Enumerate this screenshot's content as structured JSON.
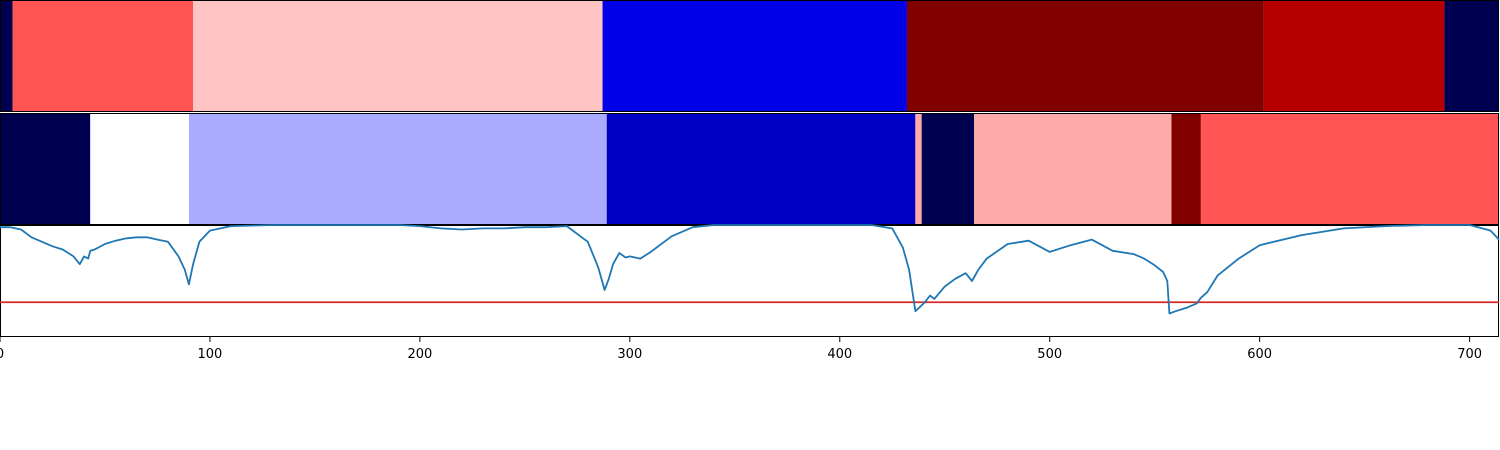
{
  "chart_data": [
    {
      "type": "heatmap",
      "row": 1,
      "xlim": [
        0,
        714
      ],
      "segments": [
        {
          "start": 0,
          "end": 6,
          "color": "#000050"
        },
        {
          "start": 6,
          "end": 92,
          "color": "#ff5555"
        },
        {
          "start": 92,
          "end": 287,
          "color": "#ffc4c4"
        },
        {
          "start": 287,
          "end": 432,
          "color": "#0000e6"
        },
        {
          "start": 432,
          "end": 602,
          "color": "#800000"
        },
        {
          "start": 602,
          "end": 688,
          "color": "#b60000"
        },
        {
          "start": 688,
          "end": 714,
          "color": "#000050"
        }
      ]
    },
    {
      "type": "heatmap",
      "row": 2,
      "xlim": [
        0,
        714
      ],
      "segments": [
        {
          "start": 0,
          "end": 43,
          "color": "#000050"
        },
        {
          "start": 43,
          "end": 90,
          "color": "#ffffff"
        },
        {
          "start": 90,
          "end": 289,
          "color": "#aaaaff"
        },
        {
          "start": 289,
          "end": 436,
          "color": "#0000c4"
        },
        {
          "start": 436,
          "end": 439,
          "color": "#ffaaaa"
        },
        {
          "start": 439,
          "end": 464,
          "color": "#000050"
        },
        {
          "start": 464,
          "end": 558,
          "color": "#ffaaaa"
        },
        {
          "start": 558,
          "end": 572,
          "color": "#800000"
        },
        {
          "start": 572,
          "end": 714,
          "color": "#ff5555"
        }
      ]
    },
    {
      "type": "line",
      "xlim": [
        0,
        714
      ],
      "ylim": [
        0,
        1
      ],
      "xticks": [
        0,
        100,
        200,
        300,
        400,
        500,
        600,
        700
      ],
      "threshold": 0.31,
      "threshold_color": "#d62728",
      "line_color": "#1f77b4",
      "series": [
        {
          "x": [
            0,
            5,
            10,
            15,
            20,
            25,
            30,
            35,
            38,
            40,
            42,
            43,
            45,
            50,
            55,
            60,
            65,
            70,
            75,
            80,
            85,
            88,
            90,
            92,
            95,
            100,
            110,
            130,
            160,
            190,
            200,
            210,
            220,
            230,
            240,
            250,
            260,
            270,
            280,
            285,
            288,
            290,
            292,
            295,
            298,
            300,
            305,
            310,
            320,
            330,
            340,
            360,
            380,
            400,
            415,
            425,
            430,
            433,
            436,
            440,
            443,
            445,
            450,
            455,
            460,
            463,
            466,
            470,
            480,
            490,
            500,
            510,
            520,
            530,
            540,
            545,
            550,
            554,
            556,
            557,
            560,
            565,
            570,
            572,
            575,
            580,
            590,
            600,
            620,
            640,
            660,
            680,
            700,
            710,
            714
          ],
          "values": [
            0.98,
            0.98,
            0.96,
            0.89,
            0.85,
            0.81,
            0.78,
            0.72,
            0.65,
            0.72,
            0.7,
            0.77,
            0.78,
            0.83,
            0.86,
            0.88,
            0.89,
            0.89,
            0.87,
            0.85,
            0.72,
            0.6,
            0.47,
            0.65,
            0.85,
            0.95,
            0.99,
            1.0,
            1.0,
            1.0,
            0.99,
            0.97,
            0.96,
            0.97,
            0.97,
            0.98,
            0.98,
            0.99,
            0.85,
            0.62,
            0.42,
            0.52,
            0.65,
            0.75,
            0.71,
            0.72,
            0.7,
            0.76,
            0.9,
            0.98,
            1.0,
            1.0,
            1.0,
            1.0,
            1.0,
            0.97,
            0.8,
            0.6,
            0.23,
            0.3,
            0.37,
            0.34,
            0.45,
            0.52,
            0.57,
            0.5,
            0.6,
            0.7,
            0.83,
            0.86,
            0.76,
            0.82,
            0.87,
            0.77,
            0.74,
            0.7,
            0.64,
            0.58,
            0.5,
            0.21,
            0.23,
            0.26,
            0.3,
            0.35,
            0.4,
            0.55,
            0.7,
            0.82,
            0.91,
            0.97,
            0.99,
            1.0,
            1.0,
            0.95,
            0.87
          ]
        }
      ]
    }
  ]
}
